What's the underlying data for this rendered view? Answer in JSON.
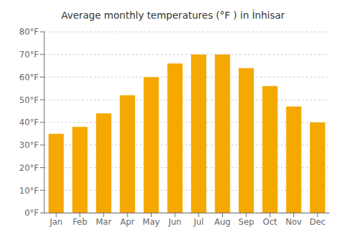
{
  "chart_data": {
    "type": "bar",
    "title": "Average monthly temperatures (°F ) in İnhisar",
    "categories": [
      "Jan",
      "Feb",
      "Mar",
      "Apr",
      "May",
      "Jun",
      "Jul",
      "Aug",
      "Sep",
      "Oct",
      "Nov",
      "Dec"
    ],
    "values": [
      35,
      38,
      44,
      52,
      60,
      66,
      70,
      70,
      64,
      56,
      47,
      40
    ],
    "color": "#F5A800",
    "ylim": [
      0,
      80
    ],
    "yticks": [
      {
        "value": 0,
        "label": "0°F"
      },
      {
        "value": 10,
        "label": "10°F"
      },
      {
        "value": 20,
        "label": "20°F"
      },
      {
        "value": 30,
        "label": "30°F"
      },
      {
        "value": 40,
        "label": "40°F"
      },
      {
        "value": 50,
        "label": "50°F"
      },
      {
        "value": 60,
        "label": "60°F"
      },
      {
        "value": 70,
        "label": "70°F"
      },
      {
        "value": 80,
        "label": "80°F"
      }
    ],
    "grid": true
  }
}
